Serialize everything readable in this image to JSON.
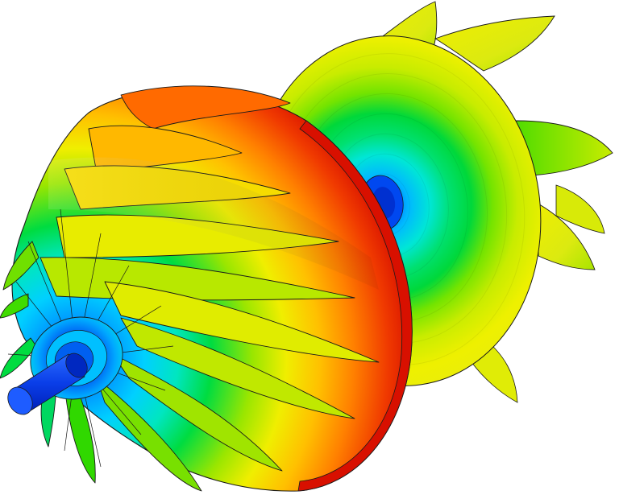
{
  "scene": {
    "subject": "turbocharger-rotor",
    "view": "isometric",
    "background": "#ffffff",
    "edge_color": "#1a1a1a",
    "colormap": [
      "#0000d8",
      "#0055ff",
      "#00b4ff",
      "#00e6d2",
      "#00dc3c",
      "#7ee600",
      "#e6ee00",
      "#ffc800",
      "#ff7a00",
      "#e81400"
    ],
    "parts": [
      {
        "name": "compressor-wheel",
        "blade_count": 14
      },
      {
        "name": "turbine-wheel",
        "blade_count": 7
      },
      {
        "name": "shaft"
      }
    ]
  }
}
